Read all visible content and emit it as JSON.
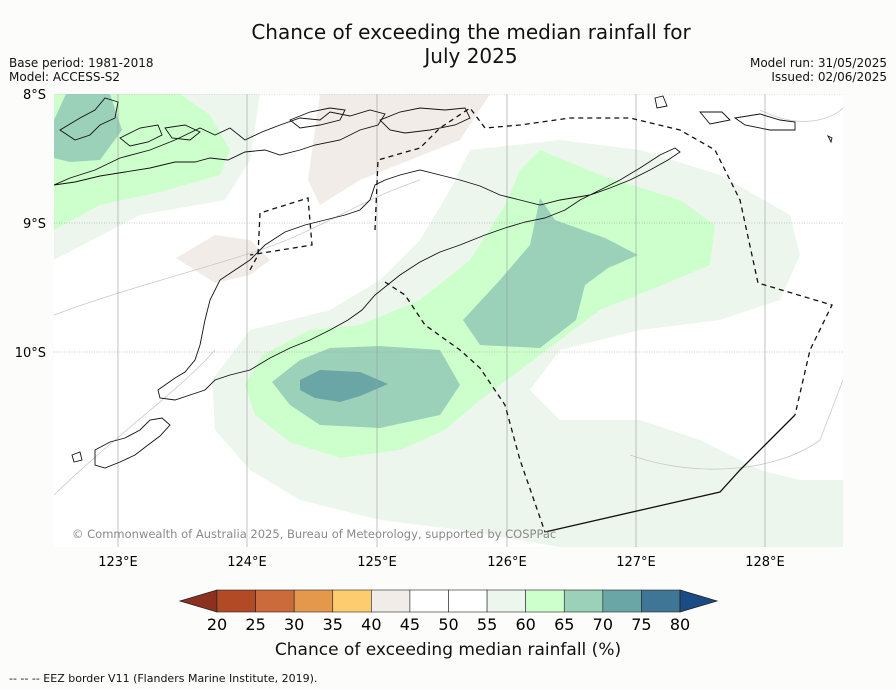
{
  "title": {
    "line1": "Chance of exceeding the median rainfall for",
    "line2": "July 2025"
  },
  "meta_left": {
    "base_period": "Base period: 1981-2018",
    "model": "Model: ACCESS-S2"
  },
  "meta_right": {
    "model_run": "Model run: 31/05/2025",
    "issued": "Issued: 02/06/2025"
  },
  "map": {
    "lat_labels": [
      "8°S",
      "9°S",
      "10°S"
    ],
    "lon_labels": [
      "123°E",
      "124°E",
      "125°E",
      "126°E",
      "127°E",
      "128°E"
    ],
    "copyright": "© Commonwealth of Australia 2025, Bureau of Meteorology, supported by COSPPac"
  },
  "colorbar": {
    "ticks": [
      "20",
      "25",
      "30",
      "35",
      "40",
      "45",
      "50",
      "55",
      "60",
      "65",
      "70",
      "75",
      "80"
    ],
    "colors": [
      "#b24a26",
      "#cb6a3a",
      "#e3984c",
      "#fdcc6f",
      "#f1ece8",
      "#ffffff",
      "#ffffff",
      "#edf6ed",
      "#ccffcc",
      "#9bd1b9",
      "#6ba6a6",
      "#3f7595"
    ],
    "under_color": "#8c3120",
    "over_color": "#1a4b84",
    "label": "Chance of exceeding median rainfall (%)"
  },
  "footnote": "--  --  -- EEZ border V11 (Flanders Marine Institute, 2019)."
}
